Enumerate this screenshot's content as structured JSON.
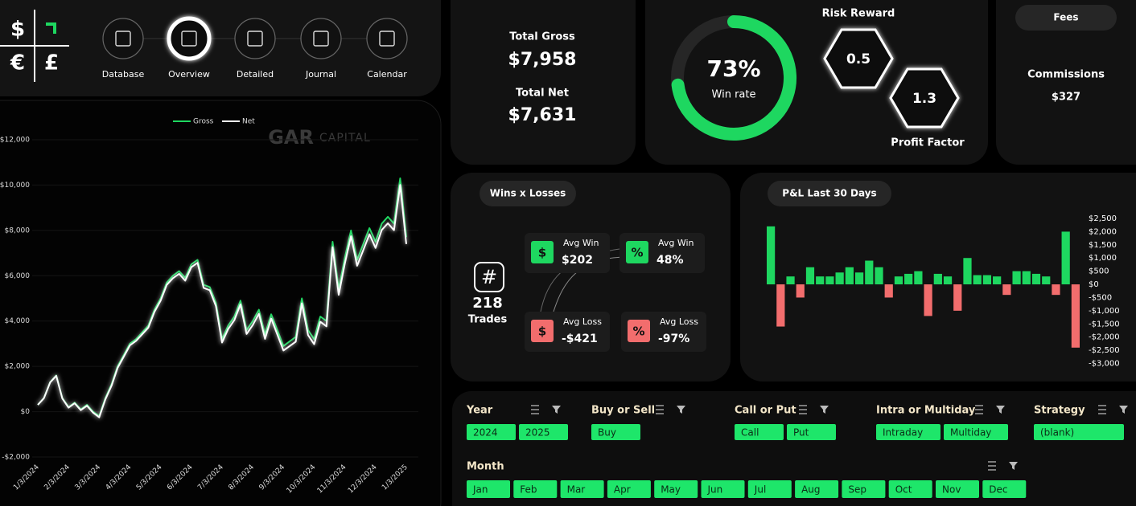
{
  "logo": {
    "symbols": [
      "$",
      "€",
      "£"
    ]
  },
  "nav": {
    "items": [
      "Database",
      "Overview",
      "Detailed",
      "Journal",
      "Calendar"
    ],
    "active_index": 1
  },
  "watermark": [
    "GAR",
    "CAPITAL"
  ],
  "summary": {
    "total_gross_label": "Total Gross",
    "total_gross": "$7,958",
    "total_net_label": "Total Net",
    "total_net": "$7,631"
  },
  "ratios": {
    "risk_reward": {
      "label": "Risk Reward",
      "value": 0.5
    },
    "profit_factor": {
      "label": "Profit Factor",
      "value": 1.3
    }
  },
  "fees": {
    "title": "Fees",
    "label": "Commissions",
    "value": "$327"
  },
  "wins_losses": {
    "title": "Wins x Losses",
    "trades_icon": "#",
    "trades": 218,
    "trades_label": "Trades",
    "stats": [
      {
        "icon": "$",
        "label": "Avg Win",
        "value": "$202",
        "kind": "win"
      },
      {
        "icon": "%",
        "label": "Avg Win",
        "value": "48%",
        "kind": "win"
      },
      {
        "icon": "$",
        "label": "Avg Loss",
        "value": "-$421",
        "kind": "loss"
      },
      {
        "icon": "%",
        "label": "Avg Loss",
        "value": "-97%",
        "kind": "loss"
      }
    ]
  },
  "slicers": {
    "groups": [
      {
        "title": "Year",
        "items": [
          "2024",
          "2025"
        ]
      },
      {
        "title": "Buy or Sell",
        "items": [
          "Buy"
        ]
      },
      {
        "title": "Call or Put",
        "items": [
          "Call",
          "Put"
        ]
      },
      {
        "title": "Intra or Multiday",
        "items": [
          "Intraday",
          "Multiday"
        ]
      },
      {
        "title": "Strategy",
        "items": [
          "(blank)"
        ]
      }
    ],
    "month": {
      "title": "Month",
      "items": [
        "Jan",
        "Feb",
        "Mar",
        "Apr",
        "May",
        "Jun",
        "Jul",
        "Aug",
        "Sep",
        "Oct",
        "Nov",
        "Dec"
      ]
    }
  },
  "chart_data": [
    {
      "type": "line",
      "categories": [
        "1/3/2024",
        null,
        null,
        null,
        null,
        "2/3/2024",
        null,
        null,
        null,
        null,
        "3/3/2024",
        null,
        null,
        null,
        null,
        "4/3/2024",
        null,
        null,
        null,
        null,
        "5/3/2024",
        null,
        null,
        null,
        null,
        "6/3/2024",
        null,
        null,
        null,
        null,
        "7/3/2024",
        null,
        null,
        null,
        null,
        "8/3/2024",
        null,
        null,
        null,
        null,
        "9/3/2024",
        null,
        null,
        null,
        null,
        "10/3/2024",
        null,
        null,
        null,
        null,
        "11/3/2024",
        null,
        null,
        null,
        null,
        "12/3/2024",
        null,
        null,
        null,
        null,
        "1/3/2025"
      ],
      "series": [
        {
          "name": "Gross",
          "color": "#1ed760",
          "values": [
            300,
            600,
            1300,
            1600,
            600,
            200,
            400,
            100,
            300,
            0,
            -200,
            600,
            1200,
            2000,
            2500,
            3000,
            3200,
            3500,
            3800,
            4500,
            5000,
            5700,
            6000,
            6200,
            5900,
            6500,
            6700,
            5600,
            5500,
            4800,
            3200,
            3800,
            4200,
            4900,
            3600,
            4000,
            4500,
            3400,
            4300,
            3600,
            2900,
            3100,
            3300,
            5000,
            3600,
            3200,
            4200,
            4000,
            7500,
            5400,
            6800,
            8000,
            6700,
            7400,
            8100,
            7500,
            8300,
            8600,
            8300,
            10300,
            7700
          ]
        },
        {
          "name": "Net",
          "color": "#ffffff",
          "values": [
            300,
            595,
            1290,
            1585,
            580,
            175,
            370,
            65,
            260,
            -45,
            -250,
            545,
            1140,
            1935,
            2430,
            2925,
            3120,
            3415,
            3710,
            4405,
            4900,
            5595,
            5890,
            6085,
            5780,
            6375,
            6570,
            5465,
            5360,
            4655,
            3050,
            3645,
            4040,
            4735,
            3430,
            3825,
            4320,
            3215,
            4110,
            3405,
            2700,
            2895,
            3090,
            4785,
            3380,
            2975,
            3970,
            3765,
            7260,
            5155,
            6550,
            7745,
            6440,
            7135,
            7830,
            7225,
            8020,
            8315,
            8010,
            10005,
            7400
          ]
        }
      ],
      "ylim": [
        -2000,
        12000
      ],
      "yticks": [
        {
          "value": -2000,
          "label": "-$2,000"
        },
        {
          "value": 0,
          "label": "$0"
        },
        {
          "value": 2000,
          "label": "$2,000"
        },
        {
          "value": 4000,
          "label": "$4,000"
        },
        {
          "value": 6000,
          "label": "$6,000"
        },
        {
          "value": 8000,
          "label": "$8,000"
        },
        {
          "value": 10000,
          "label": "$10,000"
        },
        {
          "value": 12000,
          "label": "$12,000"
        }
      ],
      "grid": true
    },
    {
      "type": "bar",
      "title": "P&L Last 30 Days",
      "values": [
        2200,
        -1600,
        300,
        -500,
        650,
        300,
        300,
        450,
        650,
        450,
        900,
        650,
        -500,
        300,
        400,
        500,
        -1200,
        400,
        300,
        -1000,
        1000,
        350,
        350,
        300,
        -400,
        500,
        500,
        400,
        300,
        -400,
        2000,
        -2400
      ],
      "colors": {
        "positive": "#1ed760",
        "negative": "#f26d6d"
      },
      "ylim": [
        -3000,
        2500
      ],
      "yticks": [
        {
          "value": 2500,
          "label": "$2,500"
        },
        {
          "value": 2000,
          "label": "$2,000"
        },
        {
          "value": 1500,
          "label": "$1,500"
        },
        {
          "value": 1000,
          "label": "$1,000"
        },
        {
          "value": 500,
          "label": "$500"
        },
        {
          "value": 0,
          "label": "$0"
        },
        {
          "value": -500,
          "label": "-$500"
        },
        {
          "value": -1000,
          "label": "-$1,000"
        },
        {
          "value": -1500,
          "label": "-$1,500"
        },
        {
          "value": -2000,
          "label": "-$2,000"
        },
        {
          "value": -2500,
          "label": "-$2,500"
        },
        {
          "value": -3000,
          "label": "-$3,000"
        }
      ]
    },
    {
      "type": "donut",
      "values": [
        73
      ],
      "value_labels": [
        "73%"
      ],
      "label": "Win rate",
      "max": 100,
      "color": "#1ed760"
    }
  ]
}
